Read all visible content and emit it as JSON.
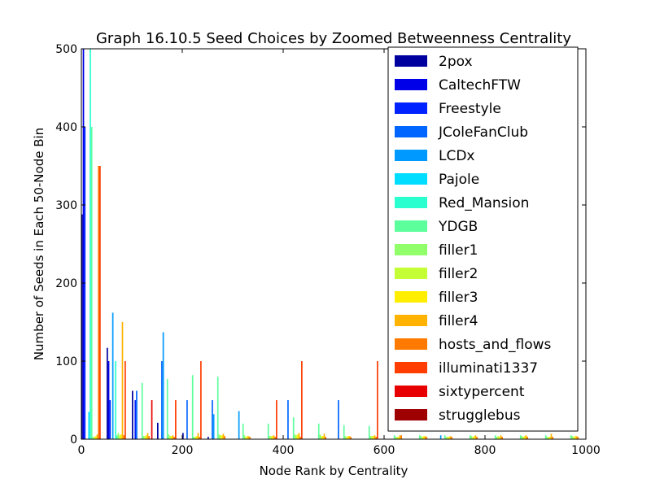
{
  "chart_data": {
    "type": "bar",
    "title": "Graph 16.10.5 Seed Choices by Zoomed Betweenness Centrality",
    "xlabel": "Node Rank by Centrality",
    "ylabel": "Number of Seeds in Each 50-Node Bin",
    "xlim": [
      0,
      1000
    ],
    "ylim": [
      0,
      500
    ],
    "xticks": [
      0,
      200,
      400,
      600,
      800,
      1000
    ],
    "yticks": [
      0,
      100,
      200,
      300,
      400,
      500
    ],
    "bin_width": 50,
    "bin_starts": [
      0,
      50,
      100,
      150,
      200,
      250,
      300,
      350,
      400,
      450,
      500,
      550,
      600,
      650,
      700,
      750,
      800,
      850,
      900,
      950
    ],
    "grid": false,
    "legend_position": "top-right",
    "series": [
      {
        "name": "2pox",
        "color": "#00009f",
        "values": [
          288,
          117,
          62,
          21,
          8,
          3,
          0,
          0,
          0,
          0,
          0,
          0,
          0,
          0,
          0,
          0,
          0,
          0,
          0,
          0
        ]
      },
      {
        "name": "CaltechFTW",
        "color": "#0000e8",
        "values": [
          500,
          100,
          0,
          0,
          0,
          0,
          0,
          0,
          0,
          0,
          0,
          0,
          0,
          0,
          0,
          0,
          0,
          0,
          0,
          0
        ]
      },
      {
        "name": "Freestyle",
        "color": "#0022ff",
        "values": [
          400,
          50,
          50,
          0,
          0,
          0,
          0,
          0,
          0,
          0,
          0,
          0,
          0,
          0,
          0,
          0,
          0,
          0,
          0,
          0
        ]
      },
      {
        "name": "JColeFanClub",
        "color": "#0066ff",
        "values": [
          0,
          0,
          62,
          100,
          50,
          50,
          0,
          0,
          50,
          0,
          50,
          0,
          0,
          0,
          0,
          0,
          0,
          0,
          0,
          0
        ]
      },
      {
        "name": "LCDx",
        "color": "#0099ff",
        "values": [
          0,
          162,
          0,
          137,
          0,
          32,
          36,
          0,
          0,
          0,
          0,
          0,
          0,
          0,
          5,
          0,
          0,
          0,
          0,
          0
        ]
      },
      {
        "name": "Pajole",
        "color": "#00ddff",
        "values": [
          35,
          0,
          0,
          0,
          0,
          0,
          0,
          0,
          0,
          0,
          0,
          0,
          0,
          0,
          0,
          0,
          0,
          0,
          0,
          0
        ]
      },
      {
        "name": "Red_Mansion",
        "color": "#2affd0",
        "values": [
          500,
          100,
          0,
          0,
          0,
          0,
          0,
          0,
          0,
          0,
          0,
          0,
          0,
          0,
          0,
          0,
          0,
          0,
          0,
          0
        ]
      },
      {
        "name": "YDGB",
        "color": "#5dff9d",
        "values": [
          400,
          5,
          72,
          77,
          82,
          80,
          20,
          20,
          28,
          20,
          18,
          17,
          5,
          5,
          5,
          5,
          5,
          5,
          5,
          5
        ]
      },
      {
        "name": "filler1",
        "color": "#90ff6a",
        "values": [
          3,
          8,
          4,
          6,
          3,
          6,
          5,
          4,
          6,
          6,
          4,
          4,
          3,
          4,
          3,
          4,
          3,
          4,
          3,
          4
        ]
      },
      {
        "name": "filler2",
        "color": "#c4ff36",
        "values": [
          3,
          5,
          4,
          4,
          3,
          5,
          3,
          4,
          5,
          4,
          3,
          4,
          3,
          3,
          3,
          3,
          4,
          3,
          3,
          3
        ]
      },
      {
        "name": "filler3",
        "color": "#ffee00",
        "values": [
          4,
          6,
          5,
          4,
          4,
          5,
          4,
          4,
          6,
          4,
          4,
          4,
          3,
          4,
          3,
          4,
          3,
          4,
          3,
          4
        ]
      },
      {
        "name": "filler4",
        "color": "#ffb300",
        "values": [
          6,
          150,
          8,
          5,
          8,
          7,
          4,
          5,
          8,
          7,
          4,
          5,
          5,
          4,
          4,
          5,
          5,
          5,
          7,
          4
        ]
      },
      {
        "name": "hosts_and_flows",
        "color": "#ff7a00",
        "values": [
          350,
          5,
          4,
          3,
          3,
          4,
          3,
          3,
          3,
          3,
          3,
          3,
          5,
          3,
          3,
          3,
          3,
          3,
          3,
          3
        ]
      },
      {
        "name": "illuminati1337",
        "color": "#ff3d00",
        "values": [
          350,
          100,
          0,
          50,
          100,
          0,
          0,
          50,
          100,
          0,
          0,
          100,
          0,
          0,
          0,
          0,
          0,
          0,
          0,
          0
        ]
      },
      {
        "name": "sixtypercent",
        "color": "#e80000",
        "values": [
          0,
          0,
          50,
          0,
          0,
          0,
          0,
          0,
          0,
          0,
          0,
          0,
          0,
          0,
          0,
          0,
          0,
          0,
          0,
          0
        ]
      },
      {
        "name": "strugglebus",
        "color": "#9f0000",
        "values": [
          0,
          0,
          0,
          0,
          0,
          0,
          0,
          0,
          0,
          0,
          0,
          0,
          0,
          0,
          0,
          0,
          0,
          0,
          0,
          0
        ]
      }
    ]
  }
}
